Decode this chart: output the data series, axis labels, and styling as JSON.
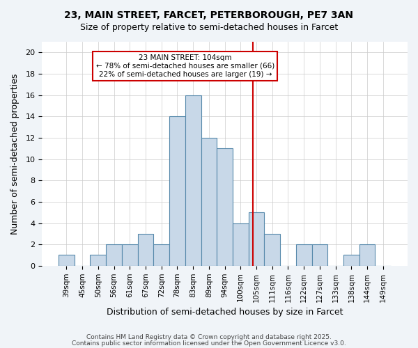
{
  "title1": "23, MAIN STREET, FARCET, PETERBOROUGH, PE7 3AN",
  "title2": "Size of property relative to semi-detached houses in Farcet",
  "xlabel": "Distribution of semi-detached houses by size in Farcet",
  "ylabel": "Number of semi-detached properties",
  "categories": [
    "39sqm",
    "45sqm",
    "50sqm",
    "56sqm",
    "61sqm",
    "67sqm",
    "72sqm",
    "78sqm",
    "83sqm",
    "89sqm",
    "94sqm",
    "100sqm",
    "105sqm",
    "111sqm",
    "116sqm",
    "122sqm",
    "127sqm",
    "133sqm",
    "138sqm",
    "144sqm",
    "149sqm"
  ],
  "values": [
    1,
    0,
    1,
    2,
    2,
    3,
    2,
    14,
    16,
    12,
    11,
    4,
    5,
    3,
    0,
    2,
    2,
    0,
    1,
    2,
    0
  ],
  "bar_color": "#c8d8e8",
  "bar_edge_color": "#5588aa",
  "marker_label": "23 MAIN STREET: 104sqm",
  "pct_smaller": 78,
  "count_smaller": 66,
  "pct_larger": 22,
  "count_larger": 19,
  "annotation_box_color": "#cc0000",
  "vline_color": "#cc0000",
  "vline_x": 11.8,
  "ylim": [
    0,
    21
  ],
  "yticks": [
    0,
    2,
    4,
    6,
    8,
    10,
    12,
    14,
    16,
    18,
    20
  ],
  "footer1": "Contains HM Land Registry data © Crown copyright and database right 2025.",
  "footer2": "Contains public sector information licensed under the Open Government Licence v3.0.",
  "bg_color": "#f0f4f8",
  "plot_bg_color": "#ffffff"
}
